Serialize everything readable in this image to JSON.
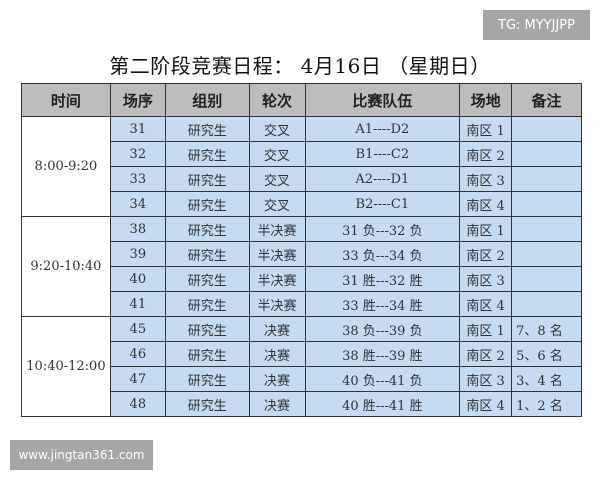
{
  "watermark_top": "TG: MYYJJPP",
  "title": "第二阶段竞赛日程： 4月16日 （星期日）",
  "headers": [
    "时间",
    "场序",
    "组别",
    "轮次",
    "比赛队伍",
    "场地",
    "备注"
  ],
  "groups": [
    {
      "time": "8:00-9:20",
      "rows": [
        [
          "31",
          "研究生",
          "交叉",
          "A1----D2",
          "南区 1",
          ""
        ],
        [
          "32",
          "研究生",
          "交叉",
          "B1----C2",
          "南区 2",
          ""
        ],
        [
          "33",
          "研究生",
          "交叉",
          "A2----D1",
          "南区 3",
          ""
        ],
        [
          "34",
          "研究生",
          "交叉",
          "B2----C1",
          "南区 4",
          ""
        ]
      ]
    },
    {
      "time": "9:20-10:40",
      "rows": [
        [
          "38",
          "研究生",
          "半决赛",
          "31 负---32 负",
          "南区 1",
          ""
        ],
        [
          "39",
          "研究生",
          "半决赛",
          "33 负---34 负",
          "南区 2",
          ""
        ],
        [
          "40",
          "研究生",
          "半决赛",
          "31 胜---32 胜",
          "南区 3",
          ""
        ],
        [
          "41",
          "研究生",
          "半决赛",
          "33 胜---34 胜",
          "南区 4",
          ""
        ]
      ]
    },
    {
      "time": "10:40-12:00",
      "rows": [
        [
          "45",
          "研究生",
          "决赛",
          "38 负---39 负",
          "南区 1",
          "7、8 名"
        ],
        [
          "46",
          "研究生",
          "决赛",
          "38 胜---39 胜",
          "南区 2",
          "5、6 名"
        ],
        [
          "47",
          "研究生",
          "决赛",
          "40 负---41 负",
          "南区 3",
          "3、4 名"
        ],
        [
          "48",
          "研究生",
          "决赛",
          "40 胜---41 胜",
          "南区 4",
          "1、2 名"
        ]
      ]
    }
  ],
  "watermark_bottom": "www.jingtan361.com"
}
